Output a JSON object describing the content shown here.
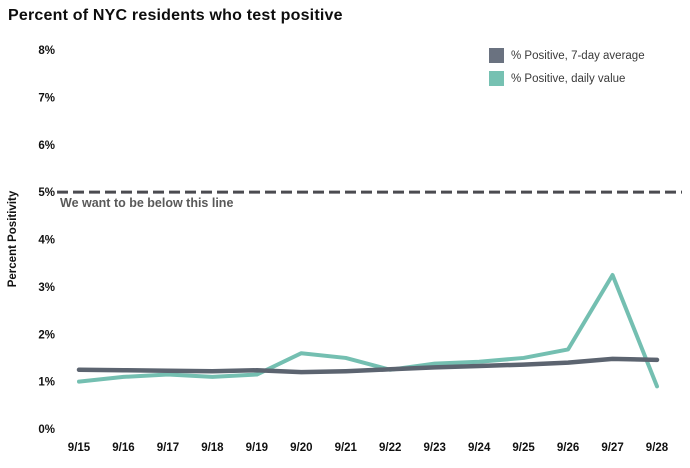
{
  "title": "Percent of NYC residents who test positive",
  "annotation": {
    "text": "We want to be below this line"
  },
  "chart_data": {
    "type": "line",
    "title": "Percent of NYC residents who test positive",
    "xlabel": "",
    "ylabel": "Percent Positivity",
    "ylim": [
      0,
      8
    ],
    "ytick_labels": [
      "0%",
      "1%",
      "2%",
      "3%",
      "4%",
      "5%",
      "6%",
      "7%",
      "8%"
    ],
    "grid": false,
    "legend_position": "top-right",
    "categories": [
      "9/15",
      "9/16",
      "9/17",
      "9/18",
      "9/19",
      "9/20",
      "9/21",
      "9/22",
      "9/23",
      "9/24",
      "9/25",
      "9/26",
      "9/27",
      "9/28"
    ],
    "series": [
      {
        "name": "% Positive, 7-day average",
        "color": "#5C6470",
        "legend_color": "#6A7280",
        "values": [
          1.25,
          1.24,
          1.23,
          1.22,
          1.24,
          1.2,
          1.22,
          1.26,
          1.3,
          1.33,
          1.36,
          1.4,
          1.48,
          1.46
        ]
      },
      {
        "name": "% Positive, daily value",
        "color": "#74BFB1",
        "legend_color": "#76C1B2",
        "values": [
          1.0,
          1.1,
          1.15,
          1.1,
          1.15,
          1.6,
          1.5,
          1.25,
          1.38,
          1.42,
          1.5,
          1.68,
          3.25,
          0.9
        ]
      }
    ],
    "reference_line": {
      "value": 5,
      "label": "We want to be below this line",
      "style": "dashed",
      "color": "#4B4B50"
    }
  }
}
